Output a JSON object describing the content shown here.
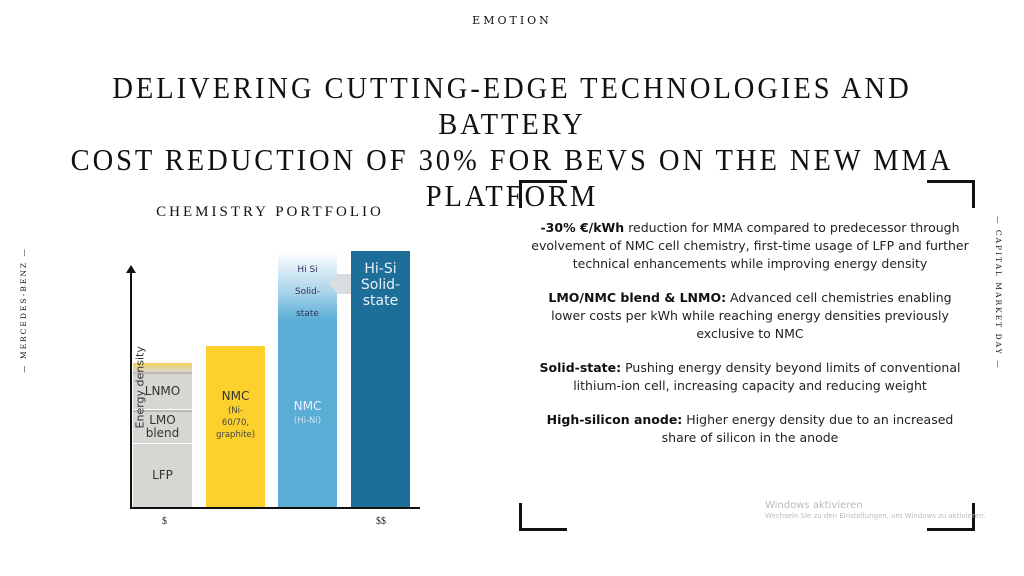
{
  "brand": "EMOTION",
  "title_lines": [
    "DELIVERING CUTTING-EDGE TECHNOLOGIES AND BATTERY",
    "COST REDUCTION OF 30% FOR BEVS ON THE NEW MMA PLATFORM"
  ],
  "side_left": "— MERCEDES-BENZ —",
  "side_right": "— CAPITAL MARKET DAY —",
  "chart_data": {
    "type": "bar",
    "title": "CHEMISTRY PORTFOLIO",
    "ylabel": "Energy density",
    "xticks": [
      "$",
      "$$"
    ],
    "ylim": [
      0,
      100
    ],
    "bars": [
      {
        "name": "LFP / LMO blend / LNMO",
        "segments": [
          {
            "label": "LFP",
            "sub": "",
            "from": 0,
            "to": 27,
            "color": "#d8d6d2"
          },
          {
            "label": "LMO blend",
            "sub": "",
            "from": 27.5,
            "to": 41,
            "color": "#d8d6d2"
          },
          {
            "label": "LNMO",
            "sub": "",
            "from": 41.5,
            "to": 57,
            "color": "#d8d6d2"
          },
          {
            "label": "",
            "sub": "",
            "from": 57,
            "to": 61,
            "color": "#f2d35a"
          }
        ]
      },
      {
        "name": "NMC",
        "segments": [
          {
            "label": "NMC",
            "sub": "(Ni-60/70, graphite)",
            "from": 0,
            "to": 68,
            "color": "#fcd12e"
          }
        ]
      },
      {
        "name": "NMC Hi-Ni",
        "segments": [
          {
            "label": "NMC",
            "sub": "(Hi-Ni)",
            "from": 0,
            "to": 79,
            "color": "#5aaed6"
          },
          {
            "label": "Hi Si Solid-state",
            "sub": "",
            "from": 79,
            "to": 108,
            "color": "#a9d3ea"
          }
        ]
      },
      {
        "name": "Hi-Si Solid-state",
        "segments": [
          {
            "label": "Hi-Si Solid-state",
            "sub": "",
            "from": 0,
            "to": 108,
            "color": "#1d6e98"
          }
        ]
      }
    ]
  },
  "points": [
    {
      "bold": "-30% €/kWh",
      "text": " reduction for MMA compared to predecessor through evolvement of NMC cell chemistry, first-time usage of LFP and further technical enhancements while improving energy density"
    },
    {
      "bold": "LMO/NMC blend & LNMO:",
      "text": " Advanced cell chemistries enabling lower costs per kWh while reaching energy densities previously exclusive to NMC"
    },
    {
      "bold": "Solid-state:",
      "text": " Pushing energy density beyond limits of conventional lithium-ion cell, increasing capacity and reducing weight"
    },
    {
      "bold": "High-silicon anode:",
      "text": " Higher energy density due to an increased share of silicon in the anode"
    }
  ],
  "watermark": {
    "title": "Windows aktivieren",
    "text": "Wechseln Sie zu den Einstellungen, um Windows zu aktivieren."
  }
}
